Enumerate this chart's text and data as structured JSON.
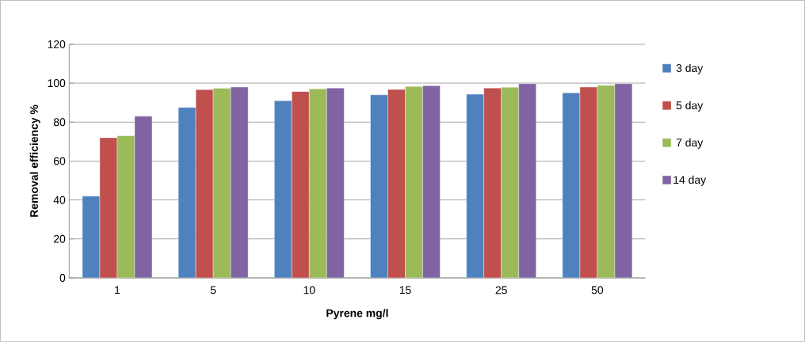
{
  "chart_data": {
    "type": "bar",
    "xlabel": "Pyrene mg/l",
    "ylabel": "Removal efficiency  %",
    "categories": [
      "1",
      "5",
      "10",
      "15",
      "25",
      "50"
    ],
    "series": [
      {
        "name": "3 day",
        "color": "#4f81bd",
        "values": [
          42,
          87.5,
          91,
          94,
          94.3,
          95
        ]
      },
      {
        "name": "5 day",
        "color": "#c0504d",
        "values": [
          72,
          96.7,
          95.7,
          96.8,
          97.5,
          98
        ]
      },
      {
        "name": "7 day",
        "color": "#9bbb59",
        "values": [
          73,
          97.4,
          97.1,
          98.3,
          97.9,
          98.9
        ]
      },
      {
        "name": "14 day",
        "color": "#8064a2",
        "values": [
          83,
          98,
          97.5,
          98.7,
          99.7,
          99.7
        ]
      }
    ],
    "ylim": [
      0,
      120
    ],
    "yticks": [
      0,
      20,
      40,
      60,
      80,
      100,
      120
    ],
    "grid": "y",
    "legend": "right"
  }
}
